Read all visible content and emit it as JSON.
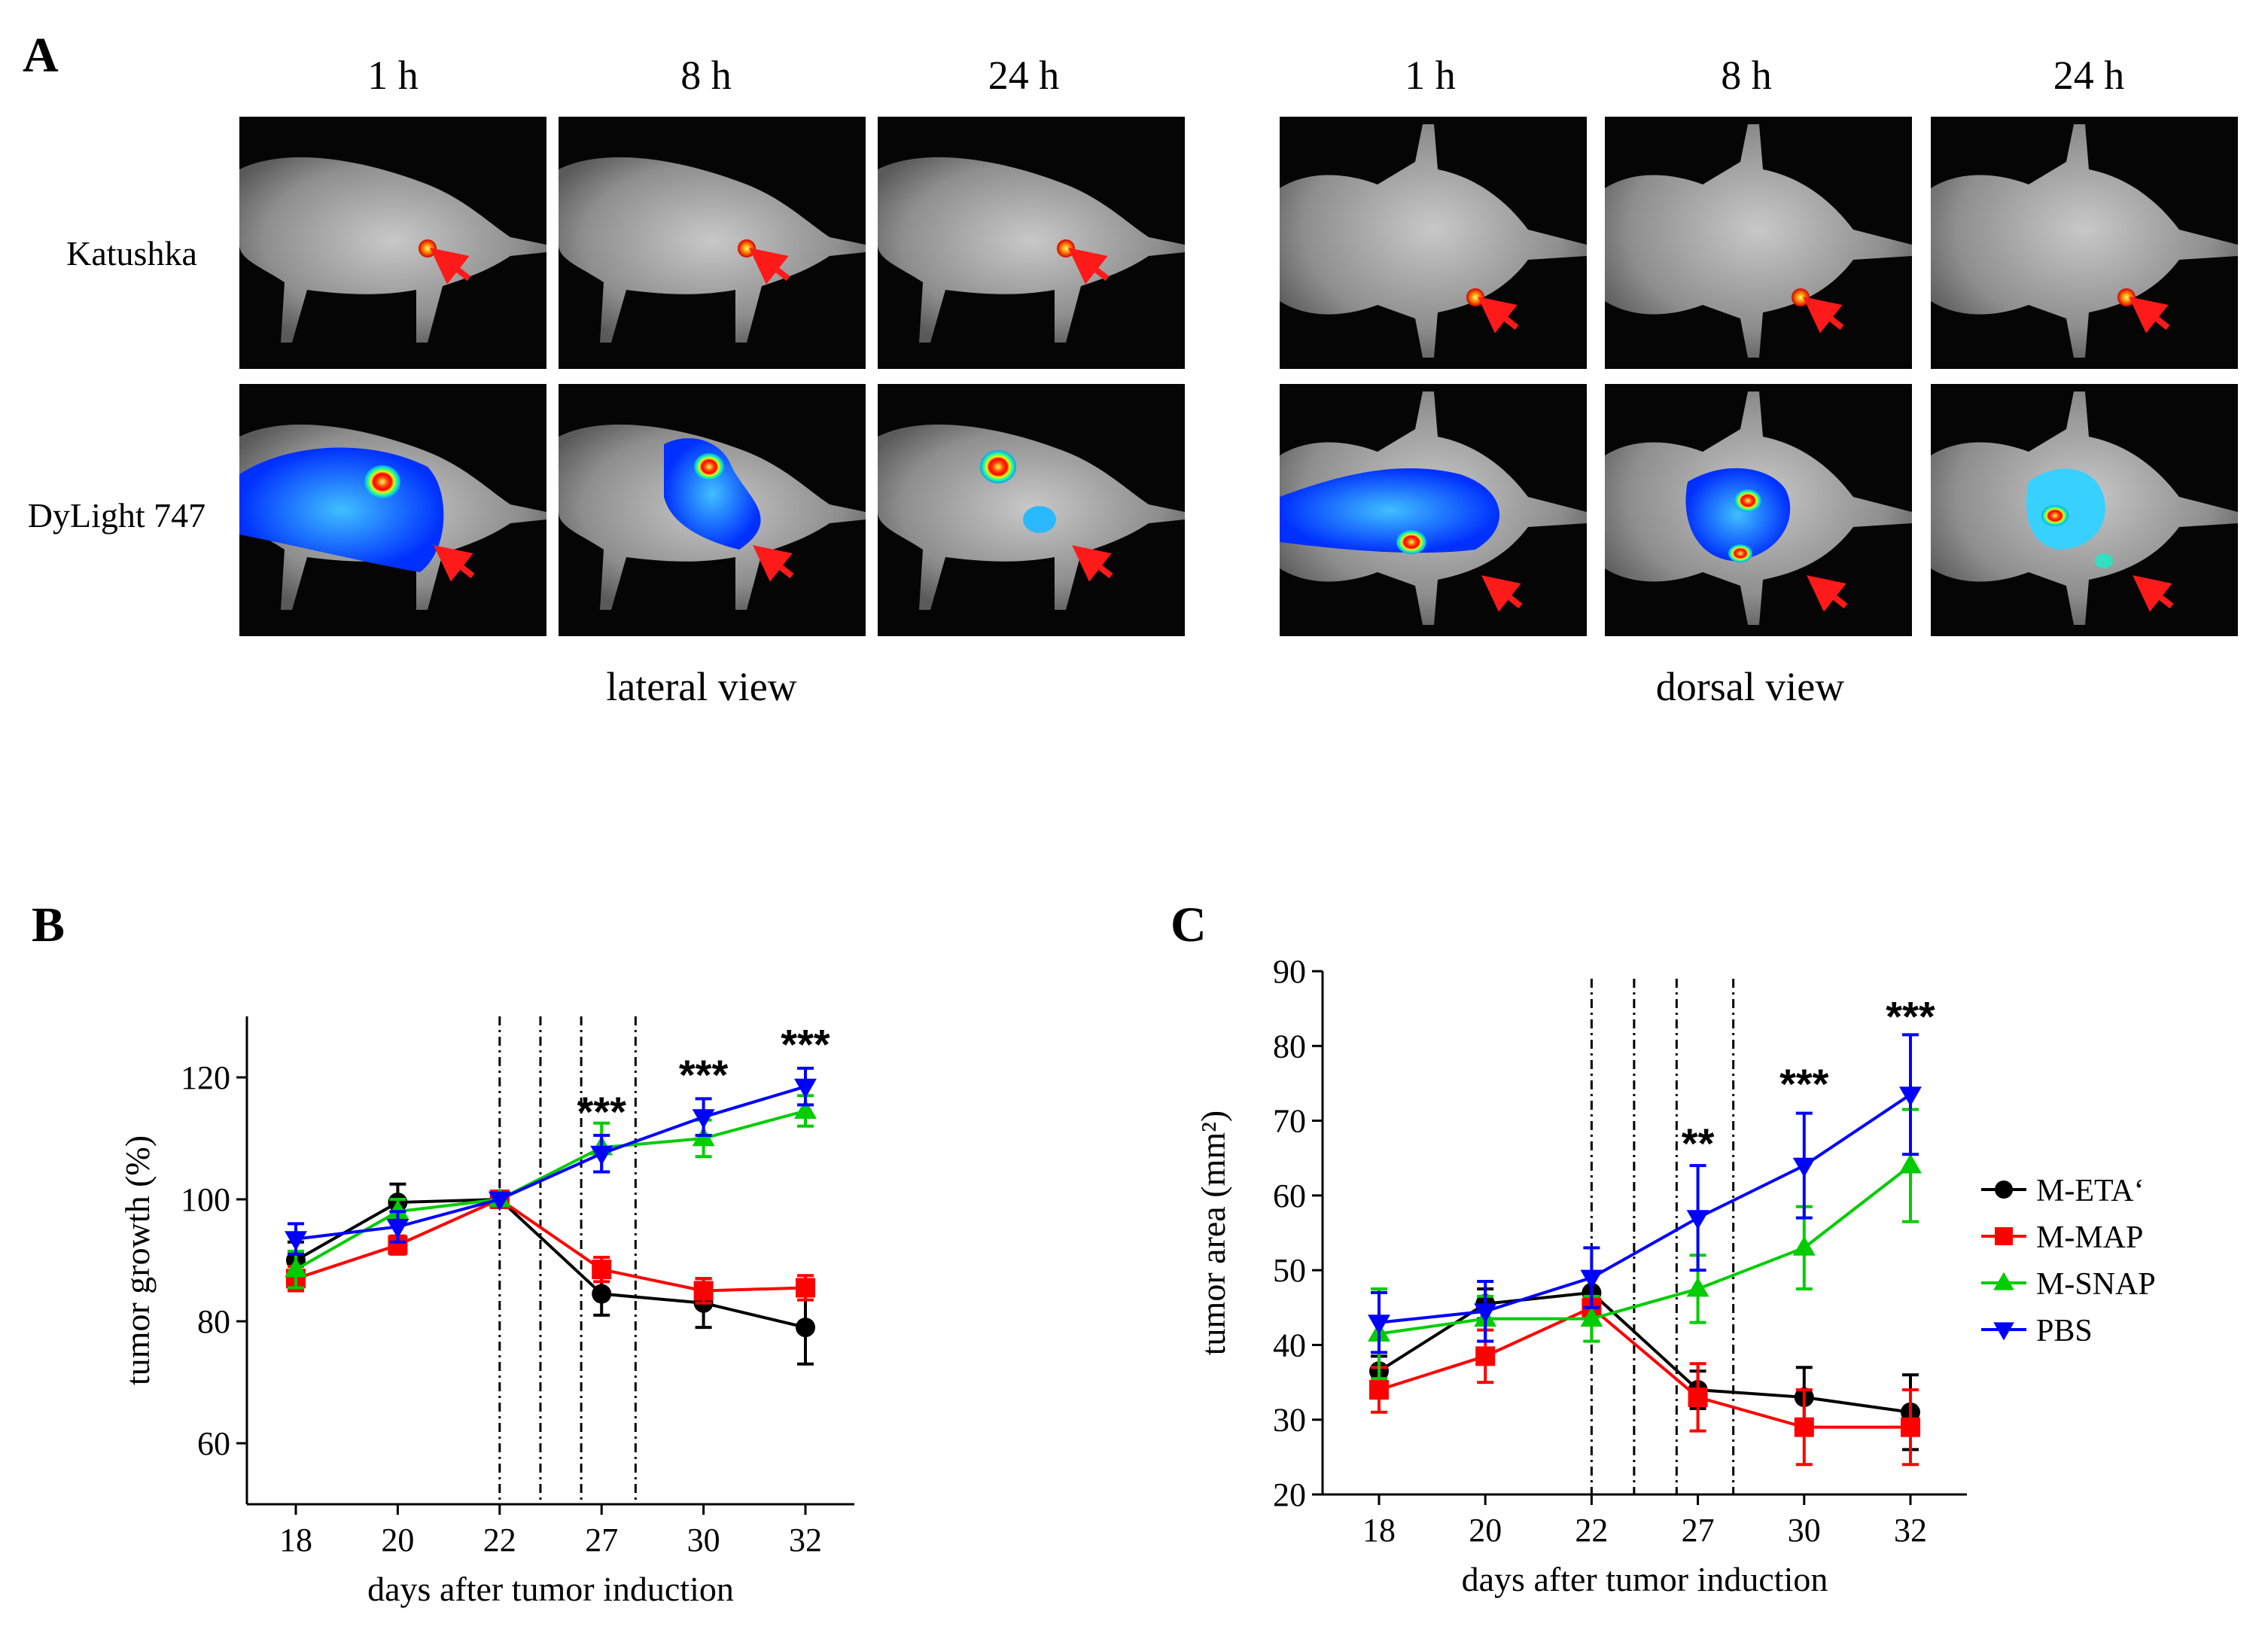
{
  "panel_a": {
    "label": "A",
    "lateral": {
      "times": [
        "1 h",
        "8 h",
        "24 h"
      ],
      "caption": "lateral view"
    },
    "dorsal": {
      "times": [
        "1 h",
        "8 h",
        "24 h"
      ],
      "caption": "dorsal view"
    },
    "rows": [
      "Katushka",
      "DyLight 747"
    ]
  },
  "panel_b": {
    "label": "B"
  },
  "panel_c": {
    "label": "C"
  },
  "chart_data": [
    {
      "type": "line",
      "panel": "B",
      "xlabel": "days after tumor induction",
      "ylabel": "tumor growth (%)",
      "categories": [
        "18",
        "20",
        "22",
        "27",
        "30",
        "32"
      ],
      "ylim": [
        50,
        130
      ],
      "yticks": [
        60,
        80,
        100,
        120
      ],
      "treatment_days": [
        22,
        24,
        26,
        28
      ],
      "series": [
        {
          "name": "M-ETA‘",
          "color": "#000000",
          "marker": "circle",
          "values": [
            90,
            99.5,
            100,
            84.5,
            83,
            79
          ],
          "errors": [
            3,
            3,
            0,
            3.5,
            4,
            6
          ]
        },
        {
          "name": "M-MAP",
          "color": "#ff0000",
          "marker": "square",
          "values": [
            87,
            92.5,
            100,
            88.5,
            85,
            85.5
          ],
          "errors": [
            2,
            1.5,
            0,
            2,
            2,
            2
          ]
        },
        {
          "name": "M-SNAP",
          "color": "#00cc00",
          "marker": "triangle-up",
          "values": [
            88.5,
            98,
            100,
            108.5,
            110,
            114.5
          ],
          "errors": [
            3,
            2,
            0,
            4,
            3,
            2.5
          ]
        },
        {
          "name": "PBS",
          "color": "#0000ff",
          "marker": "triangle-down",
          "values": [
            93.5,
            95.5,
            100,
            107.5,
            113.5,
            118.5
          ],
          "errors": [
            2.5,
            2.5,
            0,
            3,
            3,
            3
          ]
        }
      ],
      "annotations": [
        {
          "category": "27",
          "text": "***",
          "y": 112
        },
        {
          "category": "30",
          "text": "***",
          "y": 118
        },
        {
          "category": "32",
          "text": "***",
          "y": 123
        }
      ]
    },
    {
      "type": "line",
      "panel": "C",
      "xlabel": "days after tumor induction",
      "ylabel": "tumor area (mm²)",
      "categories": [
        "18",
        "20",
        "22",
        "27",
        "30",
        "32"
      ],
      "ylim": [
        20,
        90
      ],
      "yticks": [
        20,
        30,
        40,
        50,
        60,
        70,
        80,
        90
      ],
      "treatment_days": [
        22,
        24,
        26,
        28
      ],
      "legend": "right",
      "series": [
        {
          "name": "M-ETA‘",
          "color": "#000000",
          "marker": "circle",
          "values": [
            36.5,
            45.5,
            47,
            34,
            33,
            31
          ],
          "errors": [
            2,
            2,
            2.5,
            2.5,
            4,
            5
          ]
        },
        {
          "name": "M-MAP",
          "color": "#ff0000",
          "marker": "square",
          "values": [
            34,
            38.5,
            45,
            33,
            29,
            29
          ],
          "errors": [
            3,
            3.5,
            4.5,
            4.5,
            5,
            5
          ]
        },
        {
          "name": "M-SNAP",
          "color": "#00cc00",
          "marker": "triangle-up",
          "values": [
            41.5,
            43.5,
            43.5,
            47.5,
            53,
            64
          ],
          "errors": [
            6,
            3,
            3,
            4.5,
            5.5,
            7.5
          ]
        },
        {
          "name": "PBS",
          "color": "#0000ff",
          "marker": "triangle-down",
          "values": [
            43,
            44.5,
            49,
            57,
            64,
            73.5
          ],
          "errors": [
            4,
            4,
            4,
            7,
            7,
            8
          ]
        }
      ],
      "annotations": [
        {
          "category": "27",
          "text": "**",
          "y": 65
        },
        {
          "category": "30",
          "text": "***",
          "y": 73
        },
        {
          "category": "32",
          "text": "***",
          "y": 82
        }
      ]
    }
  ]
}
